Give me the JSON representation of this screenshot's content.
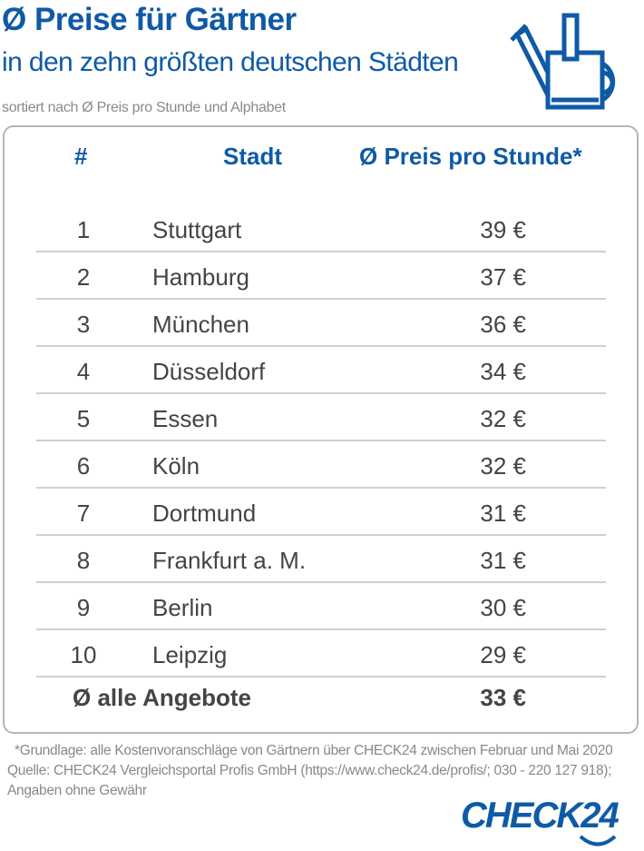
{
  "header": {
    "title": "Ø Preise für Gärtner",
    "subtitle": "in den zehn größten deutschen Städten",
    "note": "sortiert nach Ø Preis pro Stunde und Alphabet",
    "icon": "watering-can-icon"
  },
  "chart_data": {
    "type": "table",
    "columns": [
      "#",
      "Stadt",
      "Ø Preis pro Stunde*"
    ],
    "rows": [
      {
        "rank": "1",
        "city": "Stuttgart",
        "price": "39 €"
      },
      {
        "rank": "2",
        "city": "Hamburg",
        "price": "37 €"
      },
      {
        "rank": "3",
        "city": "München",
        "price": "36 €"
      },
      {
        "rank": "4",
        "city": "Düsseldorf",
        "price": "34 €"
      },
      {
        "rank": "5",
        "city": "Essen",
        "price": "32 €"
      },
      {
        "rank": "6",
        "city": "Köln",
        "price": "32 €"
      },
      {
        "rank": "7",
        "city": "Dortmund",
        "price": "31 €"
      },
      {
        "rank": "8",
        "city": "Frankfurt a. M.",
        "price": "31 €"
      },
      {
        "rank": "9",
        "city": "Berlin",
        "price": "30 €"
      },
      {
        "rank": "10",
        "city": "Leipzig",
        "price": "29 €"
      }
    ],
    "summary": {
      "label": "Ø alle Angebote",
      "price": "33 €"
    }
  },
  "footer": {
    "line1": "*Grundlage: alle Kostenvoranschläge von Gärtnern über CHECK24 zwischen Februar und Mai 2020",
    "line2": "Quelle: CHECK24 Vergleichsportal Profis GmbH (https://www.check24.de/profis/; 030 - 220 127 918);",
    "line3": "Angaben ohne Gewähr",
    "logo": "CHECK24"
  },
  "colors": {
    "brand": "#0f5aa6",
    "text": "#444444"
  }
}
